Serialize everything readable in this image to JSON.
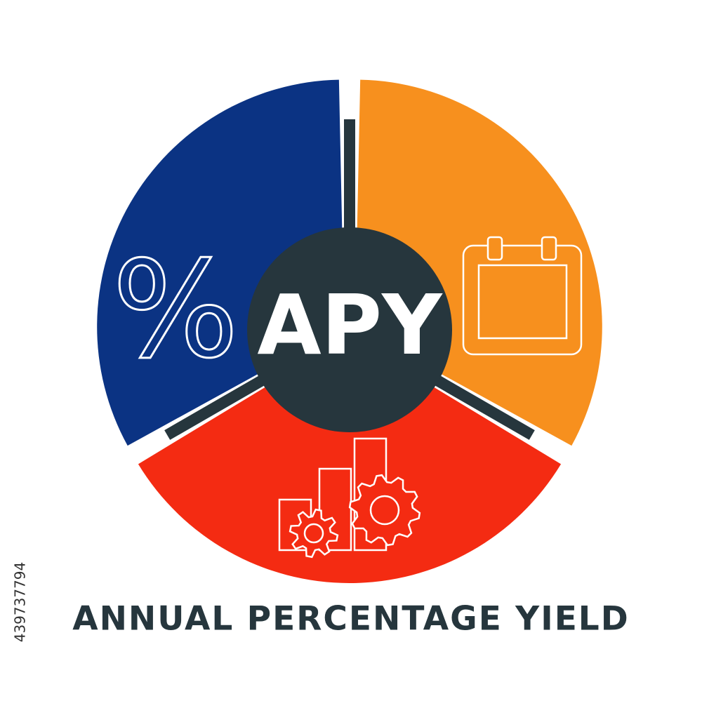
{
  "center_label": "APY",
  "percent_icon": "%",
  "caption": "ANNUAL PERCENTAGE YIELD",
  "stock_id": "439737794"
}
